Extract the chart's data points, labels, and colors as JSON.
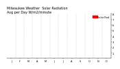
{
  "title": "Milwaukee Weather  Solar Radiation",
  "subtitle": "Avg per Day W/m2/minute",
  "bg_color": "#ffffff",
  "plot_bg": "#ffffff",
  "grid_color": "#b0b0b0",
  "ylim": [
    0,
    8
  ],
  "yticks": [
    1,
    2,
    3,
    4,
    5,
    6,
    7,
    8
  ],
  "ylabel_fontsize": 2.8,
  "xlabel_fontsize": 2.5,
  "title_fontsize": 3.5,
  "legend_label": "Solar Rad",
  "legend_color": "#ff0000",
  "months": [
    "J",
    "F",
    "M",
    "A",
    "M",
    "J",
    "J",
    "A",
    "S",
    "O",
    "N",
    "D"
  ],
  "vline_positions": [
    31,
    59,
    90,
    120,
    151,
    181,
    212,
    243,
    273,
    304,
    334
  ],
  "xlim": [
    0,
    365
  ],
  "num_days": 365,
  "dot_size": 0.4
}
